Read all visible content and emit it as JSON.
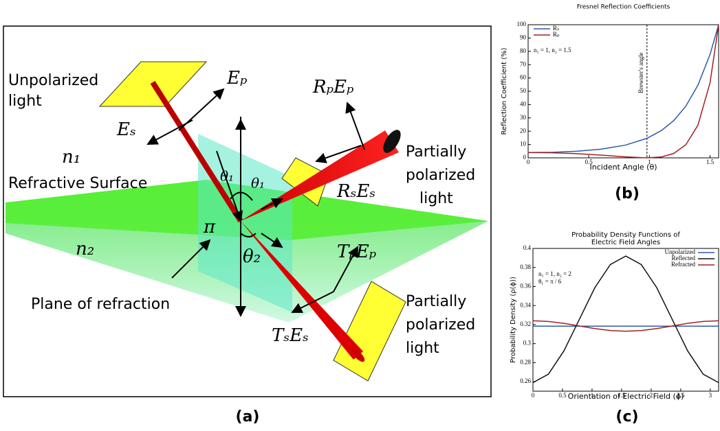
{
  "panels": [
    "(a)",
    "(b)",
    "(c)"
  ],
  "diagram": {
    "unpolarized": [
      "Unpolarized",
      "light"
    ],
    "e_p": "Eₚ",
    "e_s": "Eₛ",
    "n1": "n₁",
    "surface": "Refractive Surface",
    "n2": "n₂",
    "pi": "π",
    "theta1_a": "θ₁",
    "theta1_b": "θ₁",
    "theta2": "θ₂",
    "rp_ep": "RₚEₚ",
    "rs_es": "RₛEₛ",
    "tp_ep": "TₚEₚ",
    "ts_es": "TₛEₛ",
    "partial_top": [
      "Partially",
      "polarized",
      "light"
    ],
    "partial_bottom": [
      "Partially",
      "polarized",
      "light"
    ],
    "plane": "Plane of refraction"
  },
  "chart_data": [
    {
      "type": "line",
      "title": "Fresnel Reflection Coefficients",
      "x_label": "Incident Angle (θ)",
      "y_label": "Reflection Coefficient (%)",
      "x": [
        0,
        0.2,
        0.4,
        0.6,
        0.8,
        0.98,
        1.1,
        1.2,
        1.3,
        1.4,
        1.5,
        1.5708
      ],
      "series": [
        {
          "name": "Rₛ",
          "color": "#2a5caa",
          "values": [
            4,
            4.22,
            4.96,
            6.49,
            9.5,
            14.68,
            20.57,
            27.95,
            38.75,
            54.56,
            77.67,
            100
          ]
        },
        {
          "name": "Rₚ",
          "color": "#a31f24",
          "values": [
            4,
            3.79,
            3.14,
            2.07,
            0.75,
            0,
            0.7,
            3.27,
            9.78,
            24.45,
            56.43,
            100
          ]
        }
      ],
      "xlim": [
        0,
        1.5708
      ],
      "xticks": [
        0,
        0.5,
        1,
        1.5
      ],
      "ylim": [
        0,
        100
      ],
      "yticks": [
        0,
        10,
        20,
        30,
        40,
        50,
        60,
        70,
        80,
        90,
        100
      ],
      "legend": "upper left",
      "annotations": [
        "n₁ = 1, n₂ = 1.5"
      ],
      "vline": {
        "x": 0.98,
        "label": "Brewster's angle"
      }
    },
    {
      "type": "line",
      "title": [
        "Probability Density Functions of",
        "Electric Field Angles"
      ],
      "x_label": "Orientation of Electric Field (ϕ)",
      "y_label": "Probability Density (ρ(ϕ))",
      "x": [
        0,
        0.2618,
        0.5236,
        0.7854,
        1.0472,
        1.309,
        1.5708,
        1.8326,
        2.0944,
        2.3562,
        2.618,
        2.8798,
        3.1416
      ],
      "series": [
        {
          "name": "Unpolarized",
          "color": "#2a5caa",
          "values": [
            0.3183,
            0.3183,
            0.3183,
            0.3183,
            0.3183,
            0.3183,
            0.3183,
            0.3183,
            0.3183,
            0.3183,
            0.3183,
            0.3183,
            0.3183
          ]
        },
        {
          "name": "Reflected",
          "color": "#111111",
          "values": [
            0.259,
            0.2679,
            0.2923,
            0.3255,
            0.3588,
            0.3831,
            0.392,
            0.3831,
            0.3588,
            0.3255,
            0.2923,
            0.2679,
            0.259
          ]
        },
        {
          "name": "Refracted",
          "color": "#a31f24",
          "values": [
            0.324,
            0.3233,
            0.3213,
            0.3185,
            0.3158,
            0.3137,
            0.313,
            0.3137,
            0.3158,
            0.3185,
            0.3213,
            0.3233,
            0.324
          ]
        }
      ],
      "xlim": [
        0,
        3.1416
      ],
      "xticks": [
        0,
        0.5,
        1,
        1.5,
        2,
        2.5,
        3
      ],
      "ylim": [
        0.25,
        0.4
      ],
      "yticks": [
        0.26,
        0.28,
        0.3,
        0.32,
        0.34,
        0.36,
        0.38,
        0.4
      ],
      "legend": "upper right",
      "annotations": [
        "n₁ = 1, n₂ = 2",
        "θ₁ = π / 6"
      ]
    }
  ]
}
